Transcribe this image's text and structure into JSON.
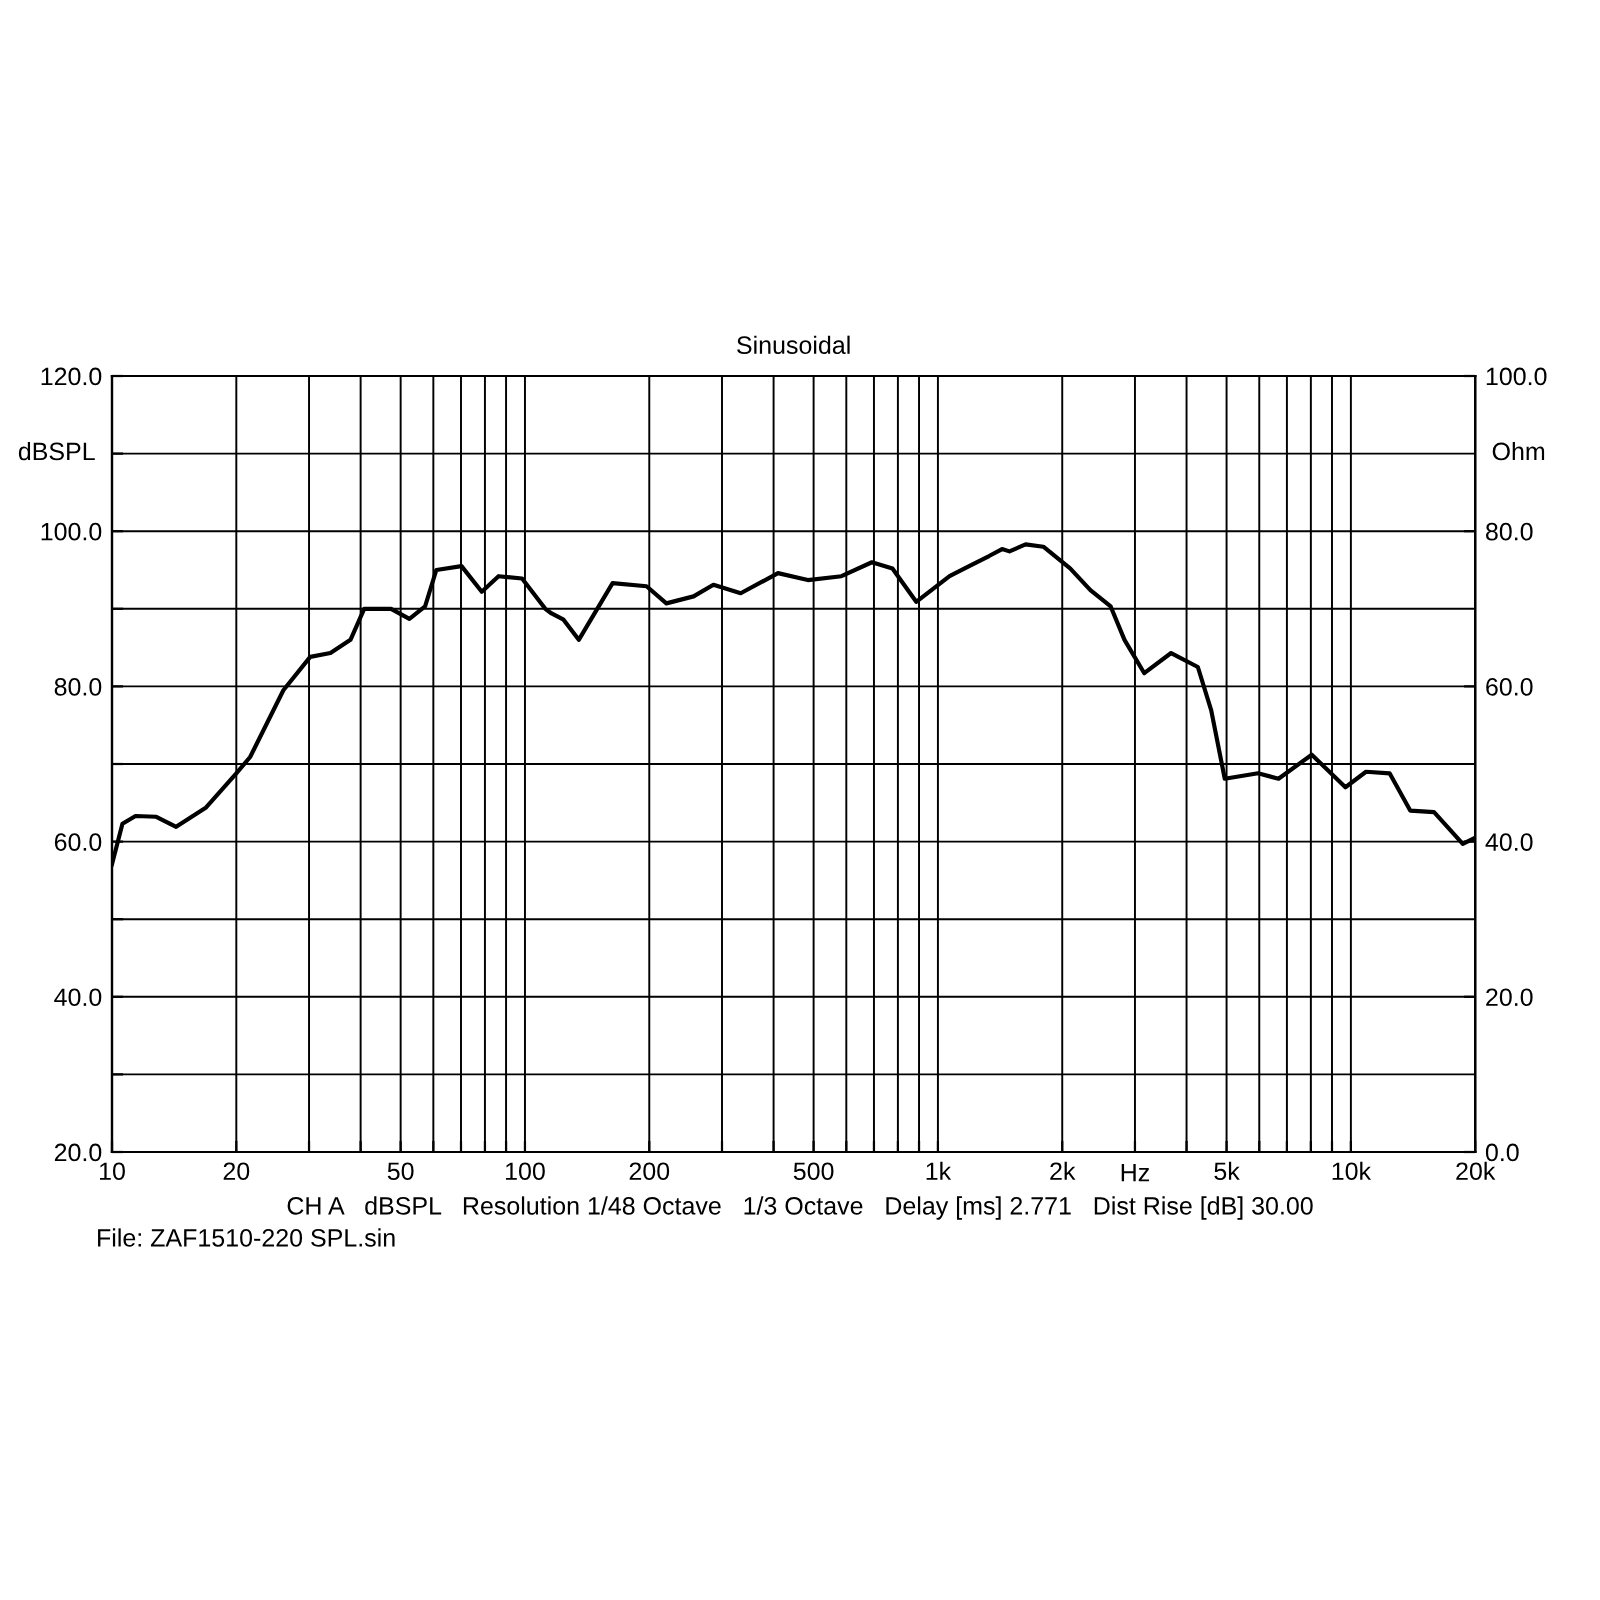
{
  "chart_data": {
    "type": "line",
    "title": "Sinusoidal",
    "xlabel": "Hz",
    "ylabel": "dBSPL",
    "y2label": "Ohm",
    "log": "x",
    "grid": true,
    "marker": "none",
    "line_style": "solid",
    "xlim": [
      10,
      20000
    ],
    "ylim": [
      20,
      120
    ],
    "y2lim": [
      0,
      100
    ],
    "xticks": [
      10,
      20,
      {
        "value": 30,
        "label": null
      },
      {
        "value": 40,
        "label": null
      },
      50,
      {
        "value": 60,
        "label": null
      },
      {
        "value": 70,
        "label": null
      },
      {
        "value": 80,
        "label": null
      },
      {
        "value": 90,
        "label": null
      },
      100,
      200,
      {
        "value": 300,
        "label": null
      },
      {
        "value": 400,
        "label": null
      },
      500,
      {
        "value": 600,
        "label": null
      },
      {
        "value": 700,
        "label": null
      },
      {
        "value": 800,
        "label": null
      },
      {
        "value": 900,
        "label": null
      },
      {
        "value": 1000,
        "label": "1k"
      },
      {
        "value": 2000,
        "label": "2k"
      },
      {
        "value": 3000,
        "label": null
      },
      {
        "value": 4000,
        "label": null
      },
      {
        "value": 5000,
        "label": "5k"
      },
      {
        "value": 6000,
        "label": null
      },
      {
        "value": 7000,
        "label": null
      },
      {
        "value": 8000,
        "label": null
      },
      {
        "value": 9000,
        "label": null
      },
      {
        "value": 10000,
        "label": "10k"
      },
      {
        "value": 20000,
        "label": "20k"
      }
    ],
    "yticks": [
      {
        "value": 20,
        "label": "20.0"
      },
      {
        "value": 30,
        "label": null
      },
      {
        "value": 40,
        "label": "40.0"
      },
      {
        "value": 50,
        "label": null
      },
      {
        "value": 60,
        "label": "60.0"
      },
      {
        "value": 70,
        "label": null
      },
      {
        "value": 80,
        "label": "80.0"
      },
      {
        "value": 90,
        "label": null
      },
      {
        "value": 100,
        "label": "100.0"
      },
      {
        "value": 110,
        "label": null
      },
      {
        "value": 120,
        "label": "120.0"
      }
    ],
    "y2ticks": [
      {
        "value": 0,
        "label": "0.0"
      },
      {
        "value": 20,
        "label": "20.0"
      },
      {
        "value": 40,
        "label": "40.0"
      },
      {
        "value": 60,
        "label": "60.0"
      },
      {
        "value": 80,
        "label": "80.0"
      },
      {
        "value": 100,
        "label": "100.0"
      }
    ],
    "series": [
      {
        "color": "#000000",
        "x": [
          10,
          10.6,
          11.4,
          12.8,
          14.3,
          16.9,
          20,
          21.6,
          26,
          30.2,
          33.8,
          37.8,
          40.8,
          47.4,
          52.5,
          57.3,
          61,
          70.2,
          78.6,
          86.3,
          98.4,
          112,
          116,
          124,
          135,
          163,
          197,
          220,
          256,
          286,
          333,
          410,
          484,
          584,
          692,
          776,
          886,
          1067,
          1190,
          1330,
          1430,
          1490,
          1630,
          1800,
          2090,
          2340,
          2620,
          2830,
          3160,
          3670,
          4260,
          4590,
          4950,
          5960,
          6680,
          8040,
          9700,
          10880,
          12410,
          13920,
          15900,
          18660,
          20000
        ],
        "values": [
          57.1,
          62.3,
          63.3,
          63.2,
          61.9,
          64.4,
          68.8,
          70.9,
          79.5,
          83.8,
          84.3,
          86.0,
          90.0,
          90.0,
          88.7,
          90.3,
          95.0,
          95.5,
          92.2,
          94.2,
          93.9,
          90.0,
          89.4,
          88.6,
          86.0,
          93.3,
          92.9,
          90.7,
          91.6,
          93.1,
          92.0,
          94.6,
          93.7,
          94.2,
          96.0,
          95.2,
          90.9,
          94.2,
          95.5,
          96.8,
          97.7,
          97.4,
          98.3,
          98.0,
          95.2,
          92.4,
          90.3,
          86.0,
          81.7,
          84.3,
          82.5,
          76.9,
          68.1,
          68.8,
          68.1,
          71.2,
          67.0,
          69.0,
          68.8,
          64.0,
          63.8,
          59.7,
          60.5
        ]
      }
    ],
    "annotations": [
      "CH A   dBSPL   Resolution 1/48 Octave   1/3 Octave   Delay [ms] 2.771   Dist Rise [dB] 30.00",
      "File: ZAF1510-220 SPL.sin"
    ]
  }
}
